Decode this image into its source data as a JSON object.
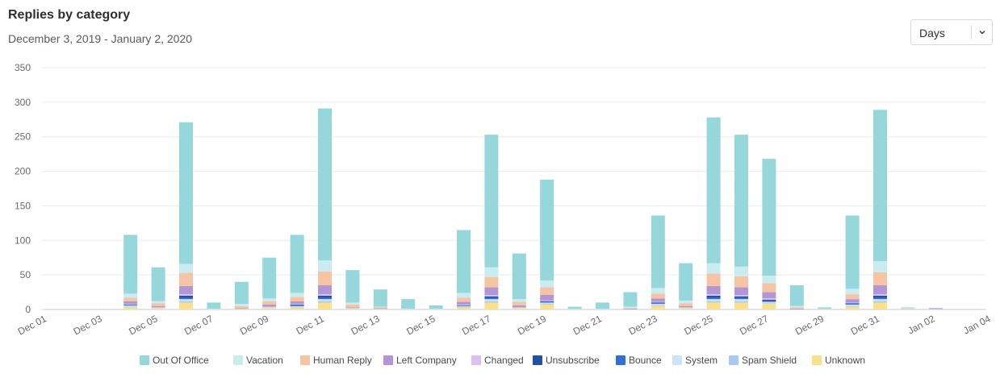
{
  "header": {
    "title": "Replies by category",
    "subtitle": "December 3, 2019 - January 2, 2020"
  },
  "period_select": {
    "value": "Days"
  },
  "chart_data": {
    "type": "bar",
    "stacked": true,
    "title": "Replies by category",
    "xlabel": "",
    "ylabel": "",
    "ylim": [
      0,
      350
    ],
    "yticks": [
      0,
      50,
      100,
      150,
      200,
      250,
      300,
      350
    ],
    "grid": true,
    "legend_position": "bottom",
    "x_tick_labels": [
      "Dec 01",
      "Dec 03",
      "Dec 05",
      "Dec 07",
      "Dec 09",
      "Dec 11",
      "Dec 13",
      "Dec 15",
      "Dec 17",
      "Dec 19",
      "Dec 21",
      "Dec 23",
      "Dec 25",
      "Dec 27",
      "Dec 29",
      "Dec 31",
      "Jan 02",
      "Jan 04"
    ],
    "categories": [
      "Dec 04",
      "Dec 05",
      "Dec 06",
      "Dec 07",
      "Dec 08",
      "Dec 09",
      "Dec 10",
      "Dec 11",
      "Dec 12",
      "Dec 13",
      "Dec 14",
      "Dec 15",
      "Dec 16",
      "Dec 17",
      "Dec 18",
      "Dec 19",
      "Dec 20",
      "Dec 21",
      "Dec 22",
      "Dec 23",
      "Dec 24",
      "Dec 25",
      "Dec 26",
      "Dec 27",
      "Dec 28",
      "Dec 29",
      "Dec 30",
      "Dec 31",
      "Jan 01",
      "Jan 02"
    ],
    "series": [
      {
        "name": "Unknown",
        "color": "#fbe08a",
        "values": [
          3,
          2,
          10,
          0,
          1,
          2,
          3,
          10,
          1,
          1,
          0,
          0,
          3,
          10,
          2,
          7,
          0,
          0,
          0,
          5,
          2,
          10,
          10,
          8,
          0,
          0,
          4,
          10,
          0,
          0
        ]
      },
      {
        "name": "Spam Shield",
        "color": "#a9c9f5",
        "values": [
          1,
          0,
          2,
          0,
          0,
          0,
          1,
          2,
          0,
          0,
          0,
          0,
          1,
          2,
          0,
          1,
          0,
          0,
          0,
          1,
          0,
          2,
          2,
          1,
          0,
          0,
          1,
          2,
          0,
          0
        ]
      },
      {
        "name": "System",
        "color": "#cfe3f7",
        "values": [
          2,
          1,
          3,
          0,
          0,
          1,
          1,
          3,
          1,
          0,
          0,
          0,
          1,
          3,
          1,
          2,
          0,
          0,
          0,
          2,
          1,
          3,
          3,
          2,
          0,
          0,
          2,
          3,
          0,
          0
        ]
      },
      {
        "name": "Bounce",
        "color": "#2e6fd9",
        "values": [
          0,
          0,
          2,
          0,
          0,
          0,
          1,
          2,
          0,
          0,
          0,
          0,
          0,
          2,
          0,
          1,
          0,
          0,
          0,
          1,
          0,
          2,
          2,
          1,
          0,
          0,
          1,
          2,
          0,
          0
        ]
      },
      {
        "name": "Unsubscribe",
        "color": "#2350a0",
        "values": [
          1,
          0,
          3,
          0,
          0,
          0,
          1,
          3,
          0,
          0,
          0,
          0,
          1,
          2,
          0,
          1,
          0,
          0,
          0,
          1,
          0,
          3,
          2,
          2,
          0,
          0,
          1,
          3,
          0,
          0
        ]
      },
      {
        "name": "Changed",
        "color": "#d9c3ee",
        "values": [
          1,
          0,
          2,
          0,
          0,
          1,
          1,
          2,
          0,
          0,
          0,
          0,
          1,
          2,
          0,
          1,
          0,
          0,
          0,
          1,
          0,
          2,
          2,
          2,
          0,
          0,
          1,
          2,
          0,
          1
        ]
      },
      {
        "name": "Left Company",
        "color": "#b396d6",
        "values": [
          4,
          2,
          12,
          0,
          1,
          3,
          4,
          13,
          1,
          1,
          0,
          0,
          4,
          11,
          3,
          8,
          0,
          0,
          1,
          5,
          2,
          12,
          11,
          9,
          1,
          0,
          5,
          13,
          0,
          1
        ]
      },
      {
        "name": "Human Reply",
        "color": "#f4c4a3",
        "values": [
          5,
          4,
          19,
          0,
          3,
          5,
          6,
          20,
          4,
          1,
          0,
          0,
          6,
          15,
          5,
          11,
          0,
          0,
          1,
          7,
          4,
          18,
          16,
          13,
          2,
          0,
          7,
          19,
          1,
          0
        ]
      },
      {
        "name": "Vacation",
        "color": "#c8ecf0",
        "values": [
          6,
          3,
          13,
          1,
          3,
          4,
          6,
          16,
          3,
          1,
          1,
          1,
          7,
          14,
          4,
          10,
          1,
          1,
          2,
          8,
          4,
          15,
          14,
          11,
          2,
          1,
          8,
          16,
          1,
          0
        ]
      },
      {
        "name": "Out Of Office",
        "color": "#96d7dc",
        "values": [
          85,
          49,
          205,
          9,
          32,
          59,
          84,
          220,
          47,
          25,
          14,
          5,
          91,
          192,
          66,
          146,
          3,
          9,
          21,
          105,
          54,
          211,
          191,
          169,
          30,
          2,
          106,
          219,
          1,
          0
        ]
      }
    ]
  },
  "legend": [
    {
      "label": "Out Of Office",
      "color": "#96d7dc"
    },
    {
      "label": "Vacation",
      "color": "#c8ecf0"
    },
    {
      "label": "Human Reply",
      "color": "#f4c4a3"
    },
    {
      "label": "Left Company",
      "color": "#b396d6"
    },
    {
      "label": "Changed",
      "color": "#d9c3ee"
    },
    {
      "label": "Unsubscribe",
      "color": "#2350a0"
    },
    {
      "label": "Bounce",
      "color": "#2e6fd9"
    },
    {
      "label": "System",
      "color": "#cfe3f7"
    },
    {
      "label": "Spam Shield",
      "color": "#a9c9f5"
    },
    {
      "label": "Unknown",
      "color": "#fbe08a"
    }
  ]
}
